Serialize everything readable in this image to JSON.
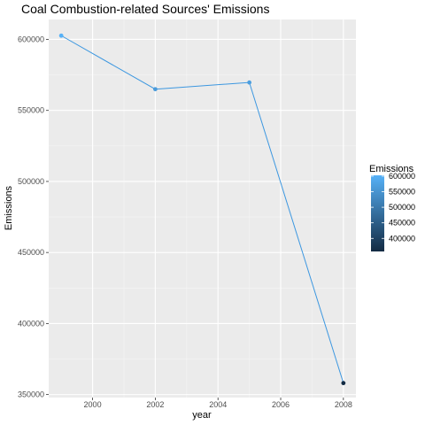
{
  "chart_data": {
    "type": "line",
    "title": "Coal Combustion-related Sources' Emissions",
    "xlabel": "year",
    "ylabel": "Emissions",
    "x": [
      1999,
      2002,
      2005,
      2008
    ],
    "y": [
      602624,
      564940,
      569655,
      358084
    ],
    "xlim": [
      1998.6,
      2008.4
    ],
    "ylim": [
      347900,
      614000
    ],
    "x_ticks": [
      2000,
      2002,
      2004,
      2006,
      2008
    ],
    "y_ticks": [
      350000,
      400000,
      450000,
      500000,
      550000,
      600000
    ],
    "y_tick_labels": [
      "350000",
      "400000",
      "450000",
      "500000",
      "550000",
      "600000"
    ],
    "x_tick_labels": [
      "2000",
      "2002",
      "2004",
      "2006",
      "2008"
    ],
    "grid": true,
    "legend": {
      "title": "Emissions",
      "placement": "right",
      "breaks": [
        400000,
        450000,
        500000,
        550000,
        600000
      ],
      "break_labels": [
        "400000",
        "450000",
        "500000",
        "550000",
        "600000"
      ],
      "range": [
        358084,
        602624
      ]
    },
    "colors": {
      "line": "#3c97e0",
      "gradient_low": "#132b43",
      "gradient_high": "#56b1f7",
      "panel_bg": "#ebebeb",
      "grid_major": "#ffffff"
    }
  }
}
